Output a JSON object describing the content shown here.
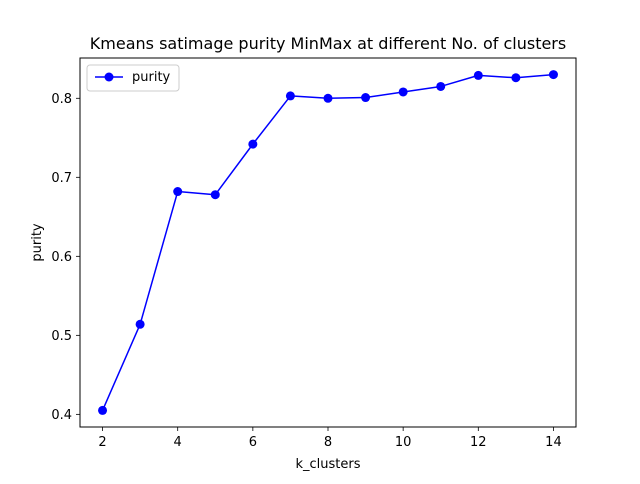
{
  "chart_data": {
    "type": "line",
    "title": "Kmeans satimage purity MinMax at different No. of clusters",
    "xlabel": "k_clusters",
    "ylabel": "purity",
    "xlim": [
      1.4,
      14.6
    ],
    "ylim": [
      0.384,
      0.851
    ],
    "xticks": [
      2,
      4,
      6,
      8,
      10,
      12,
      14
    ],
    "yticks": [
      0.4,
      0.5,
      0.6,
      0.7,
      0.8
    ],
    "grid": false,
    "legend_position": "upper-left",
    "series": [
      {
        "name": "purity",
        "color": "#0000ff",
        "marker": "circle",
        "x": [
          2,
          3,
          4,
          5,
          6,
          7,
          8,
          9,
          10,
          11,
          12,
          13,
          14
        ],
        "y": [
          0.405,
          0.514,
          0.682,
          0.678,
          0.742,
          0.803,
          0.8,
          0.801,
          0.808,
          0.815,
          0.829,
          0.826,
          0.83
        ]
      }
    ]
  }
}
